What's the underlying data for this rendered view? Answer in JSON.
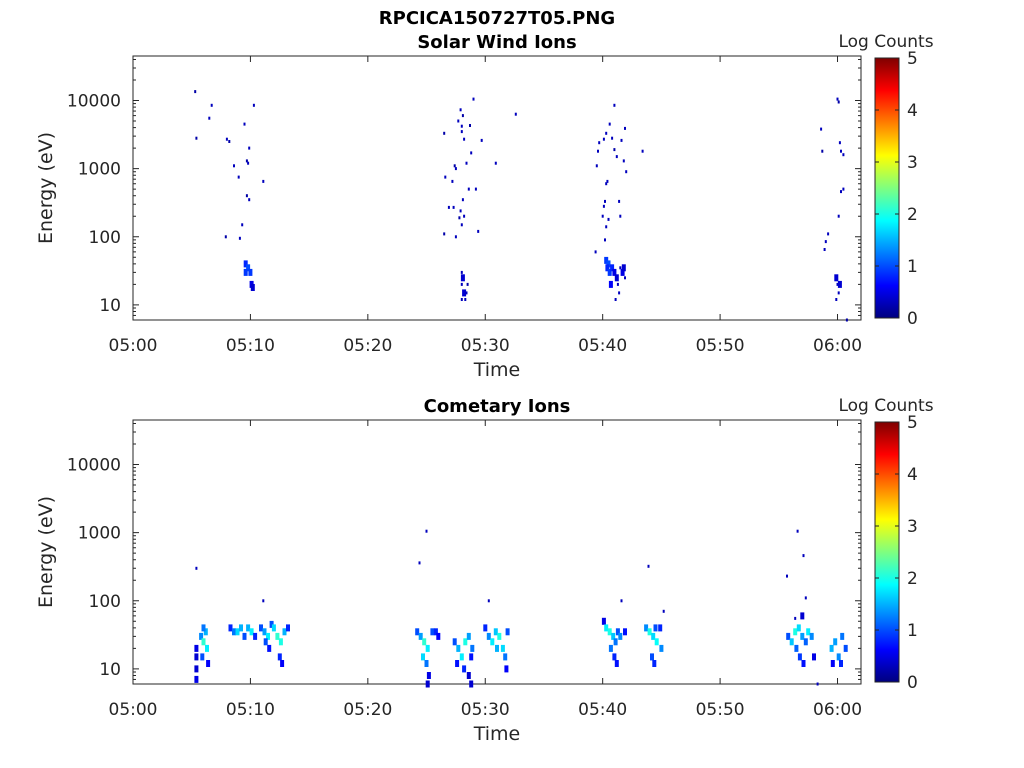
{
  "figure_title": "RPCICA150727T05.PNG",
  "colors": {
    "colormap": [
      "#00007f",
      "#0000ff",
      "#007fff",
      "#00ffff",
      "#7fff7f",
      "#ffff00",
      "#ff7f00",
      "#ff0000",
      "#7f0000"
    ],
    "axis": "#262626"
  },
  "chart_data": [
    {
      "type": "heatmap",
      "title": "Solar Wind Ions",
      "xlabel": "Time",
      "ylabel": "Energy (eV)",
      "x_ticks": [
        "05:00",
        "05:10",
        "05:20",
        "05:30",
        "05:40",
        "05:50",
        "06:00"
      ],
      "y_ticks": [
        "10",
        "100",
        "1000",
        "10000"
      ],
      "y_scale": "log",
      "xlim_minutes": [
        0,
        62
      ],
      "ylim": [
        6,
        45000
      ],
      "colorbar": {
        "label": "Log Counts",
        "ticks": [
          "0",
          "1",
          "2",
          "3",
          "4",
          "5"
        ],
        "range": [
          0,
          5
        ]
      },
      "points": [
        [
          5.3,
          13500,
          0.2
        ],
        [
          5.4,
          2800,
          0.2
        ],
        [
          6.5,
          5500,
          0.3
        ],
        [
          6.7,
          8500,
          0.3
        ],
        [
          8.0,
          2700,
          0.3
        ],
        [
          8.2,
          2500,
          0.2
        ],
        [
          8.6,
          1100,
          0.3
        ],
        [
          9.0,
          750,
          0.3
        ],
        [
          7.9,
          100,
          0.2
        ],
        [
          9.1,
          95,
          0.3
        ],
        [
          9.3,
          150,
          0.3
        ],
        [
          9.5,
          4500,
          0.3
        ],
        [
          9.7,
          1300,
          0.2
        ],
        [
          9.8,
          1200,
          0.3
        ],
        [
          9.9,
          2000,
          0.3
        ],
        [
          9.7,
          400,
          0.2
        ],
        [
          9.9,
          350,
          0.3
        ],
        [
          10.3,
          8500,
          0.3
        ],
        [
          11.1,
          650,
          0.3
        ],
        [
          9.6,
          40,
          0.8
        ],
        [
          9.8,
          35,
          1.0
        ],
        [
          10.0,
          30,
          0.9
        ],
        [
          9.6,
          30,
          0.9
        ],
        [
          10.1,
          20,
          0.5
        ],
        [
          10.2,
          18,
          0.4
        ],
        [
          26.5,
          3300,
          0.2
        ],
        [
          26.6,
          750,
          0.3
        ],
        [
          26.9,
          270,
          0.3
        ],
        [
          26.5,
          110,
          0.2
        ],
        [
          27.3,
          270,
          0.3
        ],
        [
          27.2,
          650,
          0.3
        ],
        [
          27.4,
          1100,
          0.2
        ],
        [
          27.5,
          1000,
          0.3
        ],
        [
          27.7,
          5000,
          0.3
        ],
        [
          27.9,
          7300,
          0.3
        ],
        [
          28.0,
          4200,
          0.3
        ],
        [
          28.1,
          6000,
          0.2
        ],
        [
          28.0,
          3500,
          0.3
        ],
        [
          27.9,
          240,
          0.3
        ],
        [
          28.1,
          350,
          0.3
        ],
        [
          28.2,
          2700,
          0.3
        ],
        [
          28.4,
          1200,
          0.3
        ],
        [
          28.6,
          500,
          0.3
        ],
        [
          28.7,
          4300,
          0.2
        ],
        [
          28.8,
          1700,
          0.3
        ],
        [
          29.0,
          10500,
          0.3
        ],
        [
          29.2,
          500,
          0.3
        ],
        [
          29.4,
          120,
          0.3
        ],
        [
          29.7,
          2600,
          0.3
        ],
        [
          30.9,
          1200,
          0.3
        ],
        [
          32.6,
          6300,
          0.3
        ],
        [
          27.8,
          190,
          0.2
        ],
        [
          28.0,
          150,
          0.3
        ],
        [
          28.2,
          200,
          0.3
        ],
        [
          27.5,
          100,
          0.3
        ],
        [
          28.0,
          30,
          0.3
        ],
        [
          28.1,
          25,
          0.4
        ],
        [
          28.0,
          20,
          0.3
        ],
        [
          28.2,
          15,
          0.4
        ],
        [
          28.0,
          12,
          0.3
        ],
        [
          28.3,
          12,
          0.3
        ],
        [
          28.5,
          20,
          0.2
        ],
        [
          28.4,
          15,
          0.3
        ],
        [
          39.4,
          60,
          0.3
        ],
        [
          39.6,
          1800,
          0.3
        ],
        [
          39.7,
          2400,
          0.3
        ],
        [
          39.5,
          1100,
          0.3
        ],
        [
          40.1,
          2700,
          0.3
        ],
        [
          40.3,
          3300,
          0.3
        ],
        [
          40.3,
          600,
          0.3
        ],
        [
          40.4,
          650,
          0.3
        ],
        [
          40.1,
          280,
          0.3
        ],
        [
          40.2,
          330,
          0.3
        ],
        [
          40.0,
          200,
          0.3
        ],
        [
          40.3,
          140,
          0.3
        ],
        [
          40.2,
          90,
          0.3
        ],
        [
          40.5,
          180,
          0.3
        ],
        [
          40.8,
          2800,
          0.3
        ],
        [
          41.0,
          1900,
          0.2
        ],
        [
          41.0,
          8500,
          0.3
        ],
        [
          41.2,
          1500,
          0.3
        ],
        [
          41.4,
          330,
          0.3
        ],
        [
          41.5,
          200,
          0.3
        ],
        [
          41.6,
          2600,
          0.3
        ],
        [
          41.8,
          1300,
          0.3
        ],
        [
          41.9,
          3900,
          0.3
        ],
        [
          42.0,
          900,
          0.3
        ],
        [
          43.4,
          1800,
          0.3
        ],
        [
          40.6,
          4500,
          0.3
        ],
        [
          40.3,
          45,
          0.9
        ],
        [
          40.5,
          40,
          1.0
        ],
        [
          40.4,
          35,
          0.8
        ],
        [
          40.6,
          30,
          0.9
        ],
        [
          40.8,
          35,
          0.8
        ],
        [
          41.0,
          30,
          0.5
        ],
        [
          41.2,
          25,
          0.4
        ],
        [
          40.7,
          20,
          0.6
        ],
        [
          41.3,
          20,
          0.3
        ],
        [
          41.4,
          15,
          0.3
        ],
        [
          41.1,
          12,
          0.3
        ],
        [
          41.5,
          35,
          0.3
        ],
        [
          41.7,
          30,
          0.5
        ],
        [
          41.9,
          25,
          0.3
        ],
        [
          41.8,
          35,
          0.4
        ],
        [
          58.6,
          3800,
          0.3
        ],
        [
          58.7,
          1800,
          0.2
        ],
        [
          58.9,
          65,
          0.3
        ],
        [
          59.0,
          85,
          0.3
        ],
        [
          59.2,
          110,
          0.3
        ],
        [
          60.0,
          10500,
          0.3
        ],
        [
          60.1,
          9500,
          0.2
        ],
        [
          60.2,
          2400,
          0.3
        ],
        [
          60.3,
          1800,
          0.3
        ],
        [
          60.5,
          1600,
          0.3
        ],
        [
          60.1,
          200,
          0.3
        ],
        [
          60.3,
          460,
          0.3
        ],
        [
          60.5,
          500,
          0.3
        ],
        [
          60.8,
          6,
          0.2
        ],
        [
          59.9,
          25,
          0.4
        ],
        [
          60.0,
          20,
          0.3
        ],
        [
          60.1,
          15,
          0.3
        ],
        [
          59.9,
          12,
          0.3
        ],
        [
          60.2,
          20,
          0.4
        ]
      ]
    },
    {
      "type": "heatmap",
      "title": "Cometary Ions",
      "xlabel": "Time",
      "ylabel": "Energy (eV)",
      "x_ticks": [
        "05:00",
        "05:10",
        "05:20",
        "05:30",
        "05:40",
        "05:50",
        "06:00"
      ],
      "y_ticks": [
        "10",
        "100",
        "1000",
        "10000"
      ],
      "y_scale": "log",
      "xlim_minutes": [
        0,
        62
      ],
      "ylim": [
        6,
        45000
      ],
      "colorbar": {
        "label": "Log Counts",
        "ticks": [
          "0",
          "1",
          "2",
          "3",
          "4",
          "5"
        ],
        "range": [
          0,
          5
        ]
      },
      "points": [
        [
          5.4,
          300,
          0.3
        ],
        [
          5.4,
          20,
          0.5
        ],
        [
          5.4,
          15,
          0.4
        ],
        [
          5.4,
          10,
          0.4
        ],
        [
          5.4,
          7,
          0.5
        ],
        [
          5.8,
          30,
          1.3
        ],
        [
          6.0,
          25,
          2.1
        ],
        [
          6.2,
          35,
          1.5
        ],
        [
          6.0,
          40,
          1.2
        ],
        [
          6.3,
          20,
          1.8
        ],
        [
          5.9,
          15,
          1.0
        ],
        [
          6.4,
          12,
          0.6
        ],
        [
          8.3,
          40,
          0.8
        ],
        [
          8.6,
          35,
          1.2
        ],
        [
          8.9,
          35,
          1.7
        ],
        [
          9.2,
          40,
          1.5
        ],
        [
          9.5,
          30,
          1.0
        ],
        [
          9.8,
          40,
          1.5
        ],
        [
          10.1,
          35,
          1.8
        ],
        [
          10.4,
          30,
          0.8
        ],
        [
          11.1,
          100,
          0.3
        ],
        [
          10.9,
          40,
          1.0
        ],
        [
          11.2,
          35,
          1.4
        ],
        [
          11.5,
          30,
          1.8
        ],
        [
          11.8,
          45,
          1.0
        ],
        [
          12.0,
          40,
          1.7
        ],
        [
          12.3,
          30,
          2.1
        ],
        [
          12.6,
          25,
          2.0
        ],
        [
          12.9,
          35,
          1.5
        ],
        [
          13.2,
          40,
          0.8
        ],
        [
          12.5,
          15,
          0.8
        ],
        [
          12.7,
          12,
          0.6
        ],
        [
          11.6,
          20,
          0.7
        ],
        [
          11.3,
          25,
          1.0
        ],
        [
          24.4,
          360,
          0.3
        ],
        [
          25.0,
          1050,
          0.3
        ],
        [
          24.2,
          35,
          1.0
        ],
        [
          24.5,
          30,
          1.4
        ],
        [
          24.8,
          25,
          2.1
        ],
        [
          25.1,
          20,
          1.8
        ],
        [
          24.7,
          15,
          1.7
        ],
        [
          25.0,
          12,
          1.2
        ],
        [
          25.2,
          8,
          0.5
        ],
        [
          25.1,
          6,
          0.4
        ],
        [
          25.5,
          35,
          1.0
        ],
        [
          25.8,
          35,
          0.8
        ],
        [
          26.0,
          30,
          0.6
        ],
        [
          27.4,
          25,
          1.0
        ],
        [
          27.7,
          20,
          1.5
        ],
        [
          28.0,
          15,
          1.8
        ],
        [
          28.3,
          25,
          2.0
        ],
        [
          28.6,
          30,
          1.4
        ],
        [
          28.9,
          20,
          1.2
        ],
        [
          27.6,
          12,
          0.7
        ],
        [
          28.2,
          10,
          0.8
        ],
        [
          28.8,
          15,
          0.7
        ],
        [
          28.6,
          8,
          0.4
        ],
        [
          28.8,
          6,
          0.4
        ],
        [
          30.3,
          100,
          0.3
        ],
        [
          30.0,
          40,
          0.8
        ],
        [
          30.3,
          30,
          1.3
        ],
        [
          30.6,
          25,
          1.8
        ],
        [
          30.9,
          35,
          1.6
        ],
        [
          31.2,
          30,
          2.0
        ],
        [
          31.5,
          20,
          1.7
        ],
        [
          31.7,
          15,
          1.2
        ],
        [
          31.9,
          35,
          1.0
        ],
        [
          31.8,
          10,
          0.6
        ],
        [
          31.0,
          20,
          1.5
        ],
        [
          40.1,
          50,
          0.5
        ],
        [
          40.3,
          40,
          1.8
        ],
        [
          40.6,
          35,
          2.0
        ],
        [
          40.9,
          30,
          1.6
        ],
        [
          41.1,
          25,
          1.2
        ],
        [
          41.3,
          35,
          1.0
        ],
        [
          41.5,
          30,
          1.3
        ],
        [
          41.0,
          15,
          0.8
        ],
        [
          41.2,
          12,
          0.7
        ],
        [
          40.7,
          20,
          1.2
        ],
        [
          41.6,
          100,
          0.3
        ],
        [
          41.9,
          35,
          0.7
        ],
        [
          43.9,
          320,
          0.3
        ],
        [
          43.7,
          40,
          1.3
        ],
        [
          44.0,
          35,
          2.0
        ],
        [
          44.3,
          30,
          1.7
        ],
        [
          44.6,
          25,
          1.9
        ],
        [
          44.5,
          40,
          1.0
        ],
        [
          44.9,
          40,
          0.8
        ],
        [
          45.2,
          70,
          0.3
        ],
        [
          44.2,
          15,
          1.0
        ],
        [
          44.4,
          12,
          0.8
        ],
        [
          45.0,
          20,
          1.3
        ],
        [
          55.7,
          230,
          0.3
        ],
        [
          56.6,
          1050,
          0.3
        ],
        [
          57.1,
          460,
          0.3
        ],
        [
          57.3,
          110,
          0.3
        ],
        [
          55.8,
          30,
          1.0
        ],
        [
          56.1,
          25,
          1.6
        ],
        [
          56.4,
          35,
          2.0
        ],
        [
          56.7,
          40,
          1.7
        ],
        [
          57.0,
          30,
          1.4
        ],
        [
          57.3,
          25,
          1.1
        ],
        [
          57.5,
          35,
          1.8
        ],
        [
          57.8,
          30,
          1.3
        ],
        [
          56.5,
          20,
          1.1
        ],
        [
          56.8,
          15,
          0.9
        ],
        [
          57.1,
          12,
          0.7
        ],
        [
          56.4,
          55,
          0.3
        ],
        [
          57.0,
          60,
          0.4
        ],
        [
          58.0,
          15,
          0.5
        ],
        [
          59.5,
          20,
          1.5
        ],
        [
          59.8,
          25,
          1.4
        ],
        [
          60.1,
          15,
          1.3
        ],
        [
          60.4,
          30,
          1.2
        ],
        [
          60.7,
          20,
          1.0
        ],
        [
          59.6,
          12,
          0.6
        ],
        [
          60.3,
          12,
          0.8
        ],
        [
          58.3,
          6,
          0.3
        ]
      ]
    }
  ]
}
